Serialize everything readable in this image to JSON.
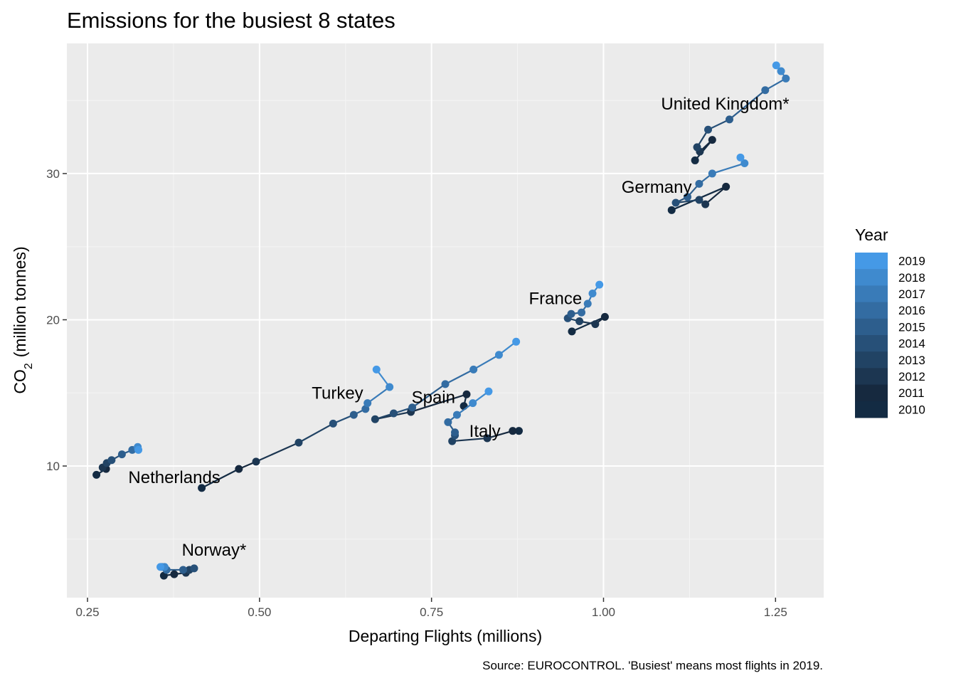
{
  "chart_data": {
    "type": "line",
    "title": "Emissions for the busiest 8 states",
    "xlabel": "Departing Flights (millions)",
    "ylabel": "CO2 (million tonnes)",
    "ylabel_main": "CO",
    "ylabel_sub": "2",
    "ylabel_rest": "(million tonnes)",
    "caption": "Source: EUROCONTROL. 'Busiest' means most flights in 2019.",
    "xlim": [
      0.22,
      1.32
    ],
    "ylim": [
      1.0,
      38.9
    ],
    "x_ticks": [
      0.25,
      0.5,
      0.75,
      1.0,
      1.25
    ],
    "x_tick_labels": [
      "0.25",
      "0.50",
      "0.75",
      "1.00",
      "1.25"
    ],
    "y_ticks": [
      10,
      20,
      30
    ],
    "y_tick_labels": [
      "10",
      "20",
      "30"
    ],
    "grid": true,
    "legend": {
      "title": "Year",
      "position": "right",
      "entries": [
        "2019",
        "2018",
        "2017",
        "2016",
        "2015",
        "2014",
        "2013",
        "2012",
        "2011",
        "2010"
      ],
      "colors": [
        "#4599E6",
        "#3F8ACE",
        "#397BB8",
        "#336CA2",
        "#2D5E8D",
        "#275078",
        "#214364",
        "#1C3651",
        "#16293F",
        "#132B43"
      ]
    },
    "colors": {
      "panel": "#EBEBEB",
      "grid_major": "#FFFFFF",
      "grid_minor": "#F5F5F5"
    },
    "series": [
      {
        "name": "United Kingdom*",
        "years": [
          2010,
          2011,
          2012,
          2013,
          2014,
          2015,
          2016,
          2017,
          2018,
          2019
        ],
        "x": [
          1.133,
          1.158,
          1.14,
          1.136,
          1.152,
          1.183,
          1.235,
          1.265,
          1.258,
          1.251
        ],
        "y": [
          30.9,
          32.3,
          31.5,
          31.8,
          33.0,
          33.7,
          35.7,
          36.5,
          37.0,
          37.4
        ]
      },
      {
        "name": "Germany",
        "years": [
          2010,
          2011,
          2012,
          2013,
          2014,
          2015,
          2016,
          2017,
          2018,
          2019
        ],
        "x": [
          1.099,
          1.178,
          1.148,
          1.139,
          1.105,
          1.122,
          1.139,
          1.158,
          1.205,
          1.199
        ],
        "y": [
          27.5,
          29.1,
          27.9,
          28.2,
          28.0,
          28.4,
          29.3,
          30.0,
          30.7,
          31.1
        ]
      },
      {
        "name": "France",
        "years": [
          2010,
          2011,
          2012,
          2013,
          2014,
          2015,
          2016,
          2017,
          2018,
          2019
        ],
        "x": [
          0.954,
          1.002,
          0.988,
          0.965,
          0.948,
          0.953,
          0.968,
          0.977,
          0.984,
          0.994
        ],
        "y": [
          19.2,
          20.2,
          19.7,
          19.9,
          20.1,
          20.4,
          20.5,
          21.1,
          21.8,
          22.4
        ]
      },
      {
        "name": "Spain",
        "years": [
          2010,
          2011,
          2012,
          2013,
          2014,
          2015,
          2016,
          2017,
          2018,
          2019
        ],
        "x": [
          0.797,
          0.801,
          0.72,
          0.668,
          0.695,
          0.722,
          0.77,
          0.811,
          0.848,
          0.873
        ],
        "y": [
          14.1,
          14.9,
          13.7,
          13.2,
          13.6,
          14.0,
          15.6,
          16.6,
          17.6,
          18.5
        ]
      },
      {
        "name": "Italy",
        "years": [
          2010,
          2011,
          2012,
          2013,
          2014,
          2015,
          2016,
          2017,
          2018,
          2019
        ],
        "x": [
          0.877,
          0.868,
          0.831,
          0.78,
          0.784,
          0.784,
          0.774,
          0.787,
          0.81,
          0.833
        ],
        "y": [
          12.4,
          12.4,
          11.9,
          11.7,
          12.1,
          12.3,
          13.0,
          13.5,
          14.3,
          15.1
        ]
      },
      {
        "name": "Turkey",
        "years": [
          2010,
          2011,
          2012,
          2013,
          2014,
          2015,
          2016,
          2017,
          2018,
          2019
        ],
        "x": [
          0.416,
          0.47,
          0.495,
          0.557,
          0.607,
          0.637,
          0.654,
          0.657,
          0.689,
          0.67
        ],
        "y": [
          8.5,
          9.8,
          10.3,
          11.6,
          12.9,
          13.5,
          13.9,
          14.3,
          15.4,
          16.6
        ]
      },
      {
        "name": "Netherlands",
        "years": [
          2010,
          2011,
          2012,
          2013,
          2014,
          2015,
          2016,
          2017,
          2018,
          2019
        ],
        "x": [
          0.263,
          0.277,
          0.272,
          0.278,
          0.285,
          0.3,
          0.315,
          0.323,
          0.323,
          0.324
        ],
        "y": [
          9.4,
          9.8,
          9.9,
          10.2,
          10.4,
          10.8,
          11.1,
          11.2,
          11.3,
          11.1
        ]
      },
      {
        "name": "Norway*",
        "years": [
          2010,
          2011,
          2012,
          2013,
          2014,
          2015,
          2016,
          2017,
          2018,
          2019
        ],
        "x": [
          0.361,
          0.376,
          0.393,
          0.398,
          0.405,
          0.389,
          0.365,
          0.358,
          0.362,
          0.356
        ],
        "y": [
          2.5,
          2.6,
          2.7,
          2.9,
          3.0,
          2.9,
          2.9,
          3.1,
          3.1,
          3.1
        ]
      }
    ]
  }
}
